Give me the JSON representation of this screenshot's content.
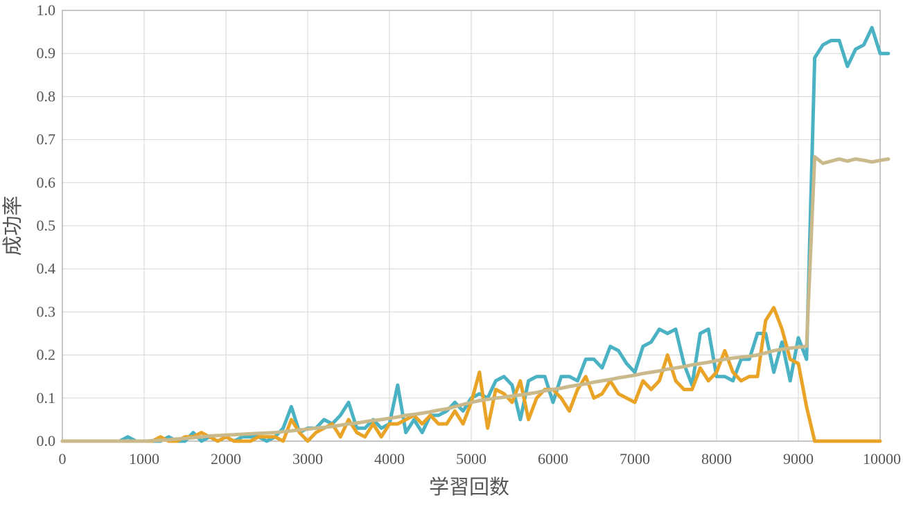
{
  "chart_data": {
    "type": "line",
    "title": "",
    "xlabel": "学習回数",
    "ylabel": "成功率",
    "xlim": [
      0,
      10000
    ],
    "ylim": [
      0,
      1.0
    ],
    "grid": true,
    "x_ticks": [
      "0",
      "1000",
      "2000",
      "3000",
      "4000",
      "5000",
      "6000",
      "7000",
      "8000",
      "9000",
      "10000"
    ],
    "y_ticks": [
      "0.0",
      "0.1",
      "0.2",
      "0.3",
      "0.4",
      "0.5",
      "0.6",
      "0.7",
      "0.8",
      "0.9",
      "1.0"
    ],
    "x_step": 100,
    "series": [
      {
        "color": "#4bb2c4",
        "values": [
          0,
          0,
          0,
          0,
          0,
          0,
          0,
          0,
          0.01,
          0,
          0,
          0,
          0,
          0.01,
          0,
          0,
          0.02,
          0,
          0.01,
          0,
          0.01,
          0,
          0.01,
          0.01,
          0.01,
          0,
          0.01,
          0.03,
          0.08,
          0.02,
          0.03,
          0.03,
          0.05,
          0.04,
          0.06,
          0.09,
          0.03,
          0.03,
          0.05,
          0.03,
          0.04,
          0.13,
          0.02,
          0.05,
          0.02,
          0.06,
          0.06,
          0.07,
          0.09,
          0.07,
          0.1,
          0.11,
          0.1,
          0.14,
          0.15,
          0.13,
          0.05,
          0.14,
          0.15,
          0.15,
          0.09,
          0.15,
          0.15,
          0.14,
          0.19,
          0.19,
          0.17,
          0.22,
          0.21,
          0.18,
          0.16,
          0.22,
          0.23,
          0.26,
          0.25,
          0.26,
          0.18,
          0.13,
          0.25,
          0.26,
          0.15,
          0.15,
          0.14,
          0.19,
          0.19,
          0.25,
          0.25,
          0.16,
          0.23,
          0.14,
          0.24,
          0.19,
          0.89,
          0.92,
          0.93,
          0.93,
          0.87,
          0.91,
          0.92,
          0.96,
          0.9,
          0.9
        ]
      },
      {
        "color": "#e9a427",
        "values": [
          0,
          0,
          0,
          0,
          0,
          0,
          0,
          0,
          0,
          0,
          0,
          0,
          0.01,
          0,
          0,
          0.01,
          0.01,
          0.02,
          0.01,
          0,
          0.01,
          0,
          0,
          0,
          0.01,
          0.01,
          0.01,
          0,
          0.05,
          0.02,
          0,
          0.02,
          0.03,
          0.04,
          0.01,
          0.05,
          0.02,
          0.01,
          0.04,
          0.01,
          0.04,
          0.04,
          0.05,
          0.06,
          0.04,
          0.06,
          0.04,
          0.04,
          0.07,
          0.04,
          0.09,
          0.16,
          0.03,
          0.12,
          0.11,
          0.09,
          0.14,
          0.05,
          0.1,
          0.12,
          0.12,
          0.1,
          0.07,
          0.12,
          0.15,
          0.1,
          0.11,
          0.14,
          0.11,
          0.1,
          0.09,
          0.14,
          0.12,
          0.14,
          0.2,
          0.14,
          0.12,
          0.12,
          0.17,
          0.14,
          0.16,
          0.21,
          0.16,
          0.14,
          0.15,
          0.15,
          0.28,
          0.31,
          0.26,
          0.19,
          0.18,
          0.08,
          0,
          0,
          0,
          0,
          0,
          0,
          0,
          0,
          0
        ]
      },
      {
        "color": "#c9b98b",
        "values": [
          0,
          0,
          0,
          0,
          0,
          0,
          0,
          0,
          0,
          0,
          0,
          0.001,
          0.002,
          0.003,
          0.005,
          0.006,
          0.008,
          0.01,
          0.012,
          0.013,
          0.014,
          0.015,
          0.016,
          0.017,
          0.018,
          0.019,
          0.02,
          0.022,
          0.024,
          0.026,
          0.028,
          0.03,
          0.032,
          0.034,
          0.037,
          0.04,
          0.042,
          0.045,
          0.048,
          0.05,
          0.053,
          0.056,
          0.06,
          0.062,
          0.065,
          0.068,
          0.072,
          0.075,
          0.08,
          0.085,
          0.09,
          0.094,
          0.097,
          0.1,
          0.102,
          0.105,
          0.107,
          0.11,
          0.113,
          0.117,
          0.12,
          0.123,
          0.127,
          0.13,
          0.133,
          0.137,
          0.14,
          0.143,
          0.147,
          0.15,
          0.153,
          0.157,
          0.16,
          0.163,
          0.167,
          0.17,
          0.173,
          0.177,
          0.18,
          0.183,
          0.187,
          0.19,
          0.193,
          0.195,
          0.197,
          0.2,
          0.205,
          0.21,
          0.213,
          0.216,
          0.218,
          0.22,
          0.66,
          0.645,
          0.65,
          0.655,
          0.65,
          0.655,
          0.652,
          0.648,
          0.652,
          0.655
        ]
      }
    ]
  }
}
